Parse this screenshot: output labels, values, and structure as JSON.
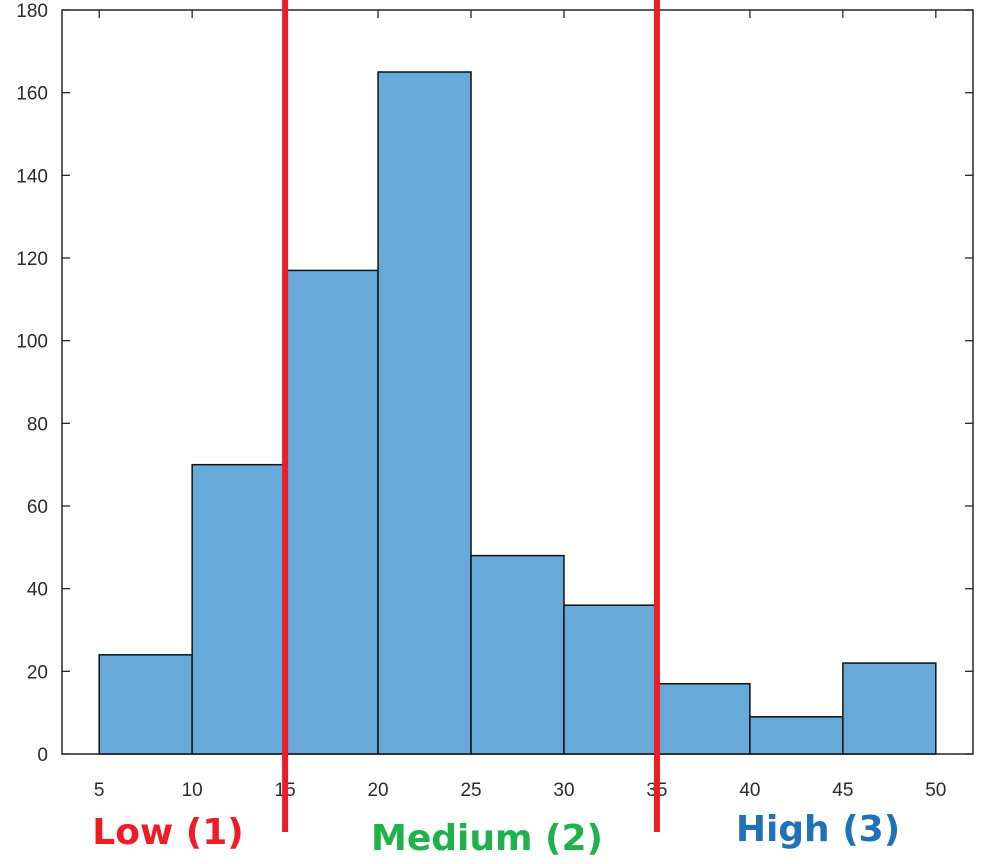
{
  "chart_data": {
    "type": "bar",
    "subtype": "histogram",
    "bin_edges": [
      5,
      10,
      15,
      20,
      25,
      30,
      35,
      40,
      45,
      50
    ],
    "values": [
      24,
      70,
      117,
      165,
      48,
      36,
      17,
      9,
      22
    ],
    "xlim": [
      3,
      52
    ],
    "ylim": [
      0,
      180
    ],
    "xticks": [
      5,
      10,
      15,
      20,
      25,
      30,
      35,
      40,
      45,
      50
    ],
    "yticks": [
      0,
      20,
      40,
      60,
      80,
      100,
      120,
      140,
      160,
      180
    ],
    "bar_color": "#67a9d9",
    "bar_edge_color": "#111111",
    "title": "",
    "xlabel": "",
    "ylabel": "",
    "grid": false,
    "thresholds": {
      "values": [
        15,
        35
      ],
      "color": "#ee1c25"
    },
    "regions": [
      {
        "label": "Low (1)",
        "color": "#ee1c25"
      },
      {
        "label": "Medium (2)",
        "color": "#20b24a"
      },
      {
        "label": "High (3)",
        "color": "#1f71b8"
      }
    ]
  }
}
